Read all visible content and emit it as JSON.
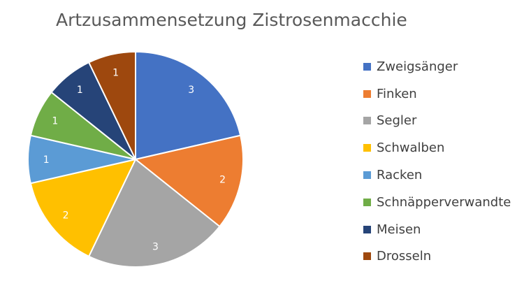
{
  "chart_data": {
    "type": "pie",
    "title": "Artzusammensetzung Zistrosenmacchie",
    "categories": [
      "Zweigsänger",
      "Finken",
      "Segler",
      "Schwalben",
      "Racken",
      "Schnäpperverwandte",
      "Meisen",
      "Drosseln"
    ],
    "values": [
      3,
      2,
      3,
      2,
      1,
      1,
      1,
      1
    ],
    "colors": [
      "#4472C4",
      "#ED7D31",
      "#A5A5A5",
      "#FFC000",
      "#5B9BD5",
      "#70AD47",
      "#264478",
      "#9E480E"
    ],
    "data_labels": true,
    "legend": "right"
  }
}
